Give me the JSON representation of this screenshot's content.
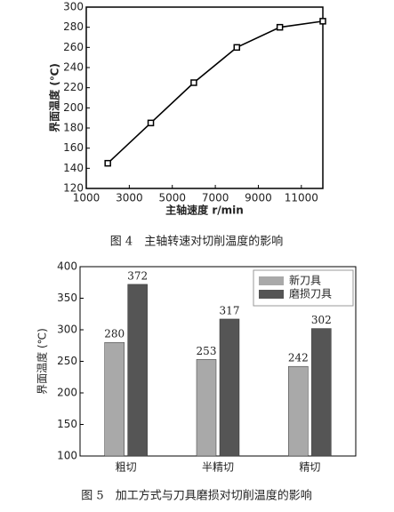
{
  "chart_data": [
    {
      "type": "line",
      "caption": "图 4　主轴转速对切削温度的影响",
      "xlabel": "主轴速度 r/min",
      "ylabel": "界面温度 (℃)",
      "x": [
        2000,
        4000,
        6000,
        8000,
        10000,
        12000
      ],
      "series": [
        {
          "color": "#000000",
          "values": [
            145,
            185,
            225,
            260,
            280,
            286
          ]
        }
      ],
      "xlim": [
        1000,
        12000
      ],
      "xticks": [
        1000,
        3000,
        5000,
        7000,
        9000,
        11000
      ],
      "ylim": [
        120,
        300
      ],
      "yticks": [
        120,
        140,
        160,
        180,
        200,
        220,
        240,
        260,
        280,
        300
      ]
    },
    {
      "type": "bar",
      "caption": "图 5　加工方式与刀具磨损对切削温度的影响",
      "ylabel": "界面温度 (℃)",
      "categories": [
        "粗切",
        "半精切",
        "精切"
      ],
      "series": [
        {
          "name": "新刀具",
          "color": "#a9a9a9",
          "values": [
            280,
            253,
            242
          ]
        },
        {
          "name": "磨损刀具",
          "color": "#555555",
          "values": [
            372,
            317,
            302
          ]
        }
      ],
      "ylim": [
        100,
        400
      ],
      "yticks": [
        100,
        150,
        200,
        250,
        300,
        350,
        400
      ],
      "legend": "upper right"
    }
  ]
}
